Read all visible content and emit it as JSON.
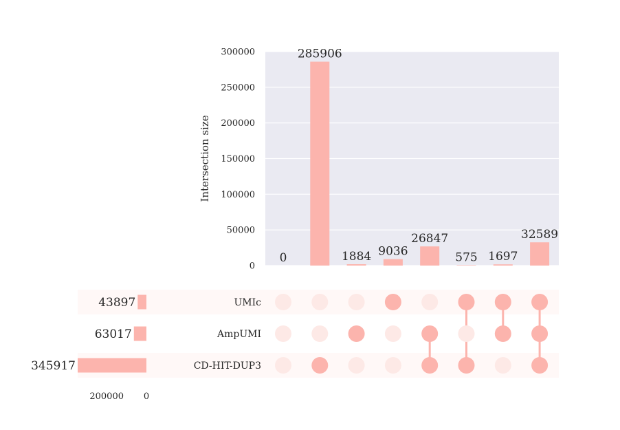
{
  "chart_data": {
    "type": "upset",
    "ylabel": "Intersection size",
    "ylim": [
      0,
      300000
    ],
    "yticks": [
      "0",
      "50000",
      "100000",
      "150000",
      "200000",
      "250000",
      "300000"
    ],
    "sets": [
      {
        "name": "UMIc",
        "size": 43897,
        "size_label": "43897"
      },
      {
        "name": "AmpUMI",
        "size": 63017,
        "size_label": "63017"
      },
      {
        "name": "CD-HIT-DUP3",
        "size": 345917,
        "size_label": "345917"
      }
    ],
    "set_size_ticks": [
      "200000",
      "0"
    ],
    "intersections": [
      {
        "members": [],
        "value": 0,
        "label": "0"
      },
      {
        "members": [
          "CD-HIT-DUP3"
        ],
        "value": 285906,
        "label": "285906"
      },
      {
        "members": [
          "AmpUMI"
        ],
        "value": 1884,
        "label": "1884"
      },
      {
        "members": [
          "UMIc"
        ],
        "value": 9036,
        "label": "9036"
      },
      {
        "members": [
          "AmpUMI",
          "CD-HIT-DUP3"
        ],
        "value": 26847,
        "label": "26847"
      },
      {
        "members": [
          "UMIc",
          "CD-HIT-DUP3"
        ],
        "value": 575,
        "label": "575"
      },
      {
        "members": [
          "UMIc",
          "AmpUMI"
        ],
        "value": 1697,
        "label": "1697"
      },
      {
        "members": [
          "UMIc",
          "AmpUMI",
          "CD-HIT-DUP3"
        ],
        "value": 32589,
        "label": "32589"
      }
    ],
    "colors": {
      "bar": "#fcb4ad",
      "dot_active": "#fcb4ad",
      "dot_inactive": "#fde9e6",
      "plot_bg": "#eaeaf2",
      "grid": "#ffffff",
      "row_shade": "#fff8f7",
      "text": "#262626"
    }
  }
}
